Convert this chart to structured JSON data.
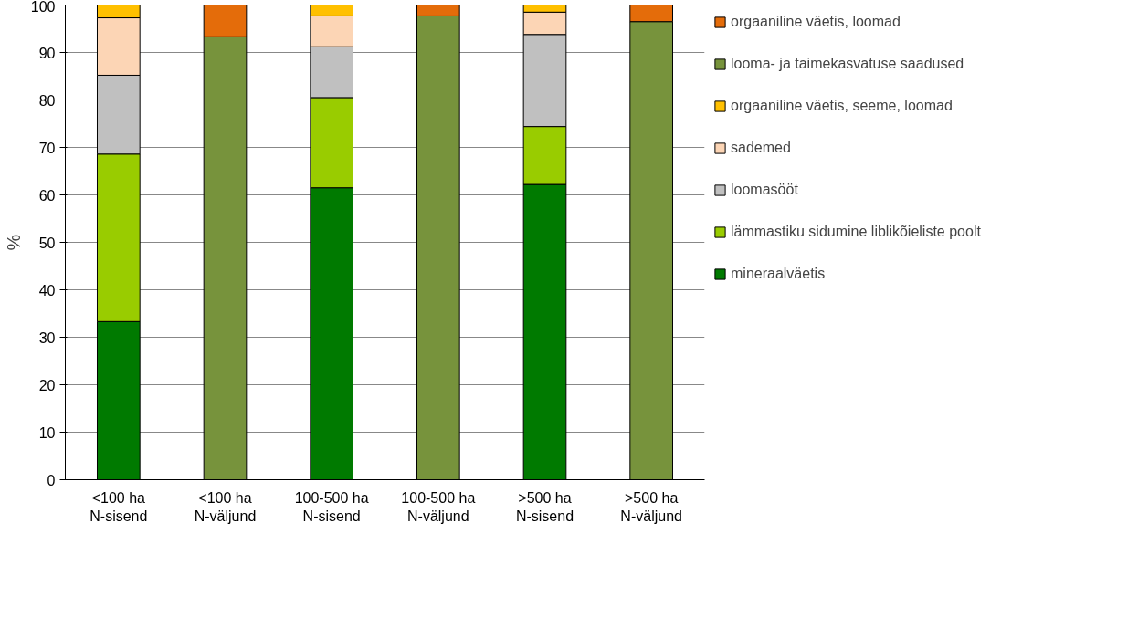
{
  "chart_data": {
    "type": "bar",
    "stacked": true,
    "ylabel": "%",
    "categories": [
      "<100 ha N-sisend",
      "<100 ha N-väljund",
      "100-500 ha N-sisend",
      "100-500 ha N-väljund",
      ">500 ha N-sisend",
      ">500 ha N-väljund"
    ],
    "series": [
      {
        "name": "mineraalväetis",
        "color": "#007a00",
        "values": [
          33.3,
          null,
          61.5,
          null,
          62.2,
          null
        ]
      },
      {
        "name": "lämmastiku sidumine liblikõieliste poolt",
        "color": "#99cc00",
        "values": [
          35.3,
          null,
          19.0,
          null,
          12.2,
          null
        ]
      },
      {
        "name": "loomasööt",
        "color": "#c0c0c0",
        "values": [
          16.6,
          null,
          10.7,
          null,
          19.4,
          null
        ]
      },
      {
        "name": "sademed",
        "color": "#fcd5b5",
        "values": [
          12.1,
          null,
          6.5,
          null,
          4.7,
          null
        ]
      },
      {
        "name": "orgaaniline väetis, seeme, loomad",
        "color": "#ffc000",
        "values": [
          2.7,
          null,
          2.3,
          null,
          1.5,
          null
        ]
      },
      {
        "name": "looma- ja taimekasvatuse saadused",
        "color": "#77933c",
        "values": [
          null,
          93.3,
          null,
          97.7,
          null,
          96.5
        ]
      },
      {
        "name": "orgaaniline väetis, loomad",
        "color": "#e46c0a",
        "values": [
          null,
          6.7,
          null,
          2.3,
          null,
          3.5
        ]
      }
    ],
    "ylim": [
      0,
      100
    ],
    "yticks": [
      0,
      10,
      20,
      30,
      40,
      50,
      60,
      70,
      80,
      90,
      100
    ],
    "grid": "y",
    "legend": "right"
  }
}
